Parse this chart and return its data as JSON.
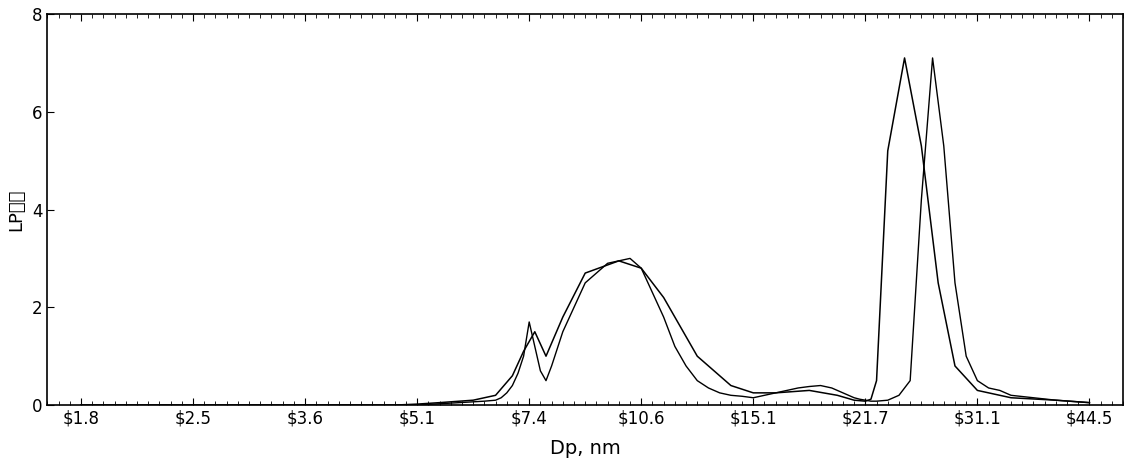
{
  "title": "",
  "xlabel": "Dp, nm",
  "ylabel": "LP质量",
  "ylim": [
    0,
    8
  ],
  "yticks": [
    0,
    2,
    4,
    6,
    8
  ],
  "xtick_labels": [
    "$1.8",
    "$2.5",
    "$3.6",
    "$5.1",
    "$7.4",
    "$10.6",
    "$15.1",
    "$21.7",
    "$31.1",
    "$44.5"
  ],
  "xtick_positions": [
    0,
    1,
    2,
    3,
    4,
    5,
    6,
    7,
    8,
    9
  ],
  "line_color": "#000000",
  "background_color": "#ffffff",
  "raw_x": [
    0.0,
    0.3,
    0.6,
    1.0,
    1.3,
    1.6,
    2.0,
    2.3,
    2.5,
    2.8,
    3.0,
    3.15,
    3.3,
    3.45,
    3.6,
    3.7,
    3.75,
    3.8,
    3.85,
    3.9,
    3.95,
    4.0,
    4.05,
    4.1,
    4.15,
    4.2,
    4.3,
    4.5,
    4.7,
    4.9,
    5.0,
    5.1,
    5.2,
    5.3,
    5.4,
    5.5,
    5.6,
    5.7,
    5.8,
    5.9,
    6.0,
    6.1,
    6.2,
    6.3,
    6.4,
    6.5,
    6.6,
    6.7,
    6.75,
    6.8,
    6.85,
    6.9,
    6.95,
    7.0,
    7.05,
    7.1,
    7.2,
    7.3,
    7.4,
    7.5,
    7.6,
    7.7,
    7.8,
    7.9,
    8.0,
    8.1,
    8.2,
    8.3,
    8.5,
    8.7,
    9.0
  ],
  "raw_y": [
    0.0,
    0.0,
    0.0,
    0.0,
    0.0,
    0.0,
    0.0,
    0.0,
    0.0,
    0.0,
    0.0,
    0.02,
    0.04,
    0.06,
    0.08,
    0.1,
    0.15,
    0.25,
    0.4,
    0.65,
    1.0,
    1.7,
    1.2,
    0.7,
    0.5,
    0.8,
    1.5,
    2.5,
    2.9,
    3.0,
    2.8,
    2.3,
    1.8,
    1.2,
    0.8,
    0.5,
    0.35,
    0.25,
    0.2,
    0.18,
    0.15,
    0.2,
    0.25,
    0.3,
    0.35,
    0.38,
    0.4,
    0.35,
    0.3,
    0.25,
    0.2,
    0.15,
    0.12,
    0.1,
    0.08,
    0.08,
    0.1,
    0.2,
    0.5,
    4.2,
    7.1,
    5.3,
    2.5,
    1.0,
    0.5,
    0.35,
    0.3,
    0.2,
    0.15,
    0.1,
    0.05
  ],
  "smooth_x": [
    0.0,
    0.5,
    1.0,
    1.5,
    2.0,
    2.5,
    2.8,
    3.0,
    3.2,
    3.5,
    3.7,
    3.85,
    3.95,
    4.05,
    4.15,
    4.3,
    4.5,
    4.8,
    5.0,
    5.2,
    5.5,
    5.8,
    6.0,
    6.2,
    6.5,
    6.75,
    6.9,
    7.0,
    7.05,
    7.1,
    7.2,
    7.35,
    7.5,
    7.65,
    7.8,
    8.0,
    8.3,
    8.7,
    9.0
  ],
  "smooth_y": [
    0.0,
    0.0,
    0.0,
    0.0,
    0.0,
    0.0,
    0.0,
    0.02,
    0.05,
    0.1,
    0.2,
    0.6,
    1.1,
    1.5,
    1.0,
    1.8,
    2.7,
    2.95,
    2.8,
    2.2,
    1.0,
    0.4,
    0.25,
    0.25,
    0.3,
    0.2,
    0.1,
    0.08,
    0.12,
    0.5,
    5.2,
    7.1,
    5.3,
    2.5,
    0.8,
    0.3,
    0.15,
    0.1,
    0.05
  ],
  "xlabel_fontsize": 14,
  "ylabel_fontsize": 13,
  "tick_fontsize": 12
}
